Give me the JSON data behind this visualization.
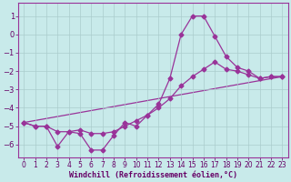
{
  "background_color": "#c8eaea",
  "grid_color": "#aacccc",
  "line_color": "#993399",
  "markersize": 2.5,
  "linewidth": 0.9,
  "xlabel": "Windchill (Refroidissement éolien,°C)",
  "xlabel_fontsize": 6.0,
  "tick_fontsize": 5.5,
  "xlim": [
    -0.5,
    23.5
  ],
  "ylim": [
    -6.7,
    1.7
  ],
  "yticks": [
    1,
    0,
    -1,
    -2,
    -3,
    -4,
    -5,
    -6
  ],
  "xticks": [
    0,
    1,
    2,
    3,
    4,
    5,
    6,
    7,
    8,
    9,
    10,
    11,
    12,
    13,
    14,
    15,
    16,
    17,
    18,
    19,
    20,
    21,
    22,
    23
  ],
  "line1_x": [
    0,
    1,
    2,
    3,
    4,
    5,
    6,
    7,
    8,
    9,
    10,
    11,
    12,
    13,
    14,
    15,
    16,
    17,
    18,
    19,
    20,
    21,
    22,
    23
  ],
  "line1_y": [
    -4.8,
    -5.0,
    -5.0,
    -6.1,
    -5.3,
    -5.4,
    -6.3,
    -6.3,
    -5.5,
    -4.8,
    -5.0,
    -4.4,
    -3.8,
    -2.4,
    -0.0,
    1.0,
    1.0,
    -0.1,
    -1.2,
    -1.8,
    -2.0,
    -2.4,
    -2.3,
    -2.3
  ],
  "line2_x": [
    0,
    1,
    2,
    3,
    4,
    5,
    6,
    7,
    8,
    9,
    10,
    11,
    12,
    13,
    14,
    15,
    16,
    17,
    18,
    19,
    20,
    21,
    22,
    23
  ],
  "line2_y": [
    -4.8,
    -5.0,
    -5.0,
    -5.3,
    -5.3,
    -5.2,
    -5.4,
    -5.4,
    -5.3,
    -5.0,
    -4.7,
    -4.4,
    -4.0,
    -3.5,
    -2.8,
    -2.3,
    -1.9,
    -1.5,
    -1.9,
    -2.0,
    -2.2,
    -2.4,
    -2.3,
    -2.3
  ],
  "line3_x": [
    0,
    23
  ],
  "line3_y": [
    -4.8,
    -2.3
  ]
}
